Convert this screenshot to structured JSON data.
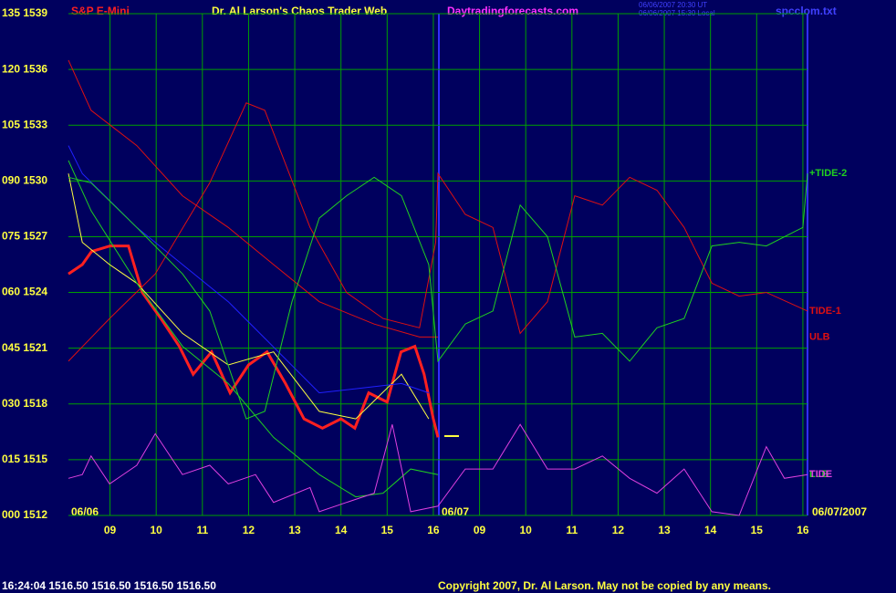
{
  "chart_data": {
    "type": "line",
    "title": "Dr. Al Larson's Chaos Trader Web",
    "subtitle": "S&P E-Mini",
    "website": "Daytradingforecasts.com",
    "file": "spcclom.txt",
    "stamp": [
      "06/06/2007 20:30 UT",
      "06/06/2007 15:30 Local"
    ],
    "day_labels": [
      "06/06",
      "06/07",
      "06/07/2007"
    ],
    "status": "16:24:04  1516.50  1516.50  1516.50  1516.50",
    "copyright": "Copyright 2007, Dr. Al Larson. May not be copied by any means.",
    "xlim": [
      0,
      16
    ],
    "xticks": [
      {
        "value": 0.9,
        "label": "09"
      },
      {
        "value": 1.9,
        "label": "10"
      },
      {
        "value": 2.9,
        "label": "11"
      },
      {
        "value": 3.9,
        "label": "12"
      },
      {
        "value": 4.9,
        "label": "13"
      },
      {
        "value": 5.9,
        "label": "14"
      },
      {
        "value": 6.9,
        "label": "15"
      },
      {
        "value": 7.9,
        "label": "16"
      },
      {
        "value": 8.9,
        "label": "09"
      },
      {
        "value": 9.9,
        "label": "10"
      },
      {
        "value": 10.9,
        "label": "11"
      },
      {
        "value": 11.9,
        "label": "12"
      },
      {
        "value": 12.9,
        "label": "13"
      },
      {
        "value": 13.9,
        "label": "14"
      },
      {
        "value": 14.9,
        "label": "15"
      },
      {
        "value": 15.9,
        "label": "16"
      }
    ],
    "ylim": [
      1512,
      1539
    ],
    "yticks": [
      {
        "value": 1539,
        "label": "135 1539"
      },
      {
        "value": 1536,
        "label": "120 1536"
      },
      {
        "value": 1533,
        "label": "105 1533"
      },
      {
        "value": 1530,
        "label": "090 1530"
      },
      {
        "value": 1527,
        "label": "075 1527"
      },
      {
        "value": 1524,
        "label": "060 1524"
      },
      {
        "value": 1521,
        "label": "045 1521"
      },
      {
        "value": 1518,
        "label": "030 1518"
      },
      {
        "value": 1515,
        "label": "015 1515"
      },
      {
        "value": 1512,
        "label": "000 1512"
      }
    ],
    "grid": true,
    "series": [
      {
        "color": "#ff2020",
        "width": 3,
        "x": [
          0,
          0.3,
          0.5,
          0.9,
          1.3,
          1.6,
          2.0,
          2.4,
          2.7,
          3.1,
          3.5,
          3.9,
          4.3,
          4.7,
          5.1,
          5.5,
          5.9,
          6.2,
          6.5,
          6.9,
          7.2,
          7.5,
          7.7,
          7.9,
          8.0
        ],
        "values": [
          1525.0,
          1525.5,
          1526.2,
          1526.5,
          1526.5,
          1524.0,
          1522.6,
          1521.1,
          1519.6,
          1520.8,
          1518.6,
          1520.1,
          1520.8,
          1519.1,
          1517.2,
          1516.7,
          1517.2,
          1516.7,
          1518.6,
          1518.1,
          1520.8,
          1521.1,
          1519.6,
          1517.2,
          1516.2
        ]
      },
      {
        "color": "#ffff40",
        "width": 1,
        "x": [
          0,
          0.3,
          0.89,
          1.48,
          2.47,
          3.46,
          4.44,
          5.43,
          6.22,
          7.21,
          7.8
        ],
        "values": [
          1530.4,
          1526.7,
          1525.5,
          1524.5,
          1521.8,
          1520.1,
          1520.8,
          1517.6,
          1517.2,
          1519.6,
          1517.2
        ]
      },
      {
        "color": "#2020ff",
        "width": 1,
        "x": [
          0,
          0.3,
          1.48,
          3.46,
          5.43,
          7.21,
          7.8
        ],
        "values": [
          1531.9,
          1530.4,
          1527.5,
          1523.5,
          1518.6,
          1519.1,
          1518.6
        ]
      },
      {
        "name": "ULB",
        "color": "#e01010",
        "width": 1,
        "x": [
          0,
          0.49,
          1.48,
          2.47,
          3.46,
          4.44,
          5.43,
          6.62,
          7.6,
          8.0
        ],
        "values": [
          1536.5,
          1533.8,
          1531.9,
          1529.2,
          1527.5,
          1525.5,
          1523.5,
          1522.3,
          1521.6,
          1521.6
        ]
      },
      {
        "name": "TIDE-1",
        "color": "#e01010",
        "width": 1,
        "x": [
          0,
          0.89,
          1.88,
          3.06,
          3.85,
          4.25,
          5.23,
          6.02,
          6.81,
          7.6,
          7.95,
          8.0,
          8.59,
          9.19,
          9.78,
          10.37,
          10.96,
          11.56,
          12.15,
          12.74,
          13.33,
          13.93,
          14.52,
          15.11,
          16.0
        ],
        "values": [
          1520.3,
          1522.6,
          1525.0,
          1529.9,
          1534.2,
          1533.8,
          1527.5,
          1524.0,
          1522.6,
          1522.1,
          1526.7,
          1530.4,
          1528.2,
          1527.5,
          1521.8,
          1523.5,
          1529.2,
          1528.7,
          1530.2,
          1529.5,
          1527.5,
          1524.5,
          1523.8,
          1524.0,
          1523.0
        ]
      },
      {
        "name": "+TIDE-2",
        "color": "#20d020",
        "width": 1,
        "x": [
          0,
          0.49,
          1.48,
          2.47,
          3.06,
          3.85,
          4.25,
          4.84,
          5.43,
          6.02,
          6.62,
          7.21,
          7.8,
          8.0,
          8.59,
          9.19,
          9.78,
          10.37,
          10.96,
          11.56,
          12.15,
          12.74,
          13.33,
          13.93,
          14.52,
          15.11,
          15.9,
          16.0
        ],
        "values": [
          1530.2,
          1529.9,
          1527.5,
          1525.0,
          1523.0,
          1517.2,
          1517.6,
          1523.5,
          1528.0,
          1529.2,
          1530.2,
          1529.2,
          1525.5,
          1520.3,
          1522.3,
          1523.0,
          1528.7,
          1527.0,
          1521.6,
          1521.8,
          1520.3,
          1522.1,
          1522.6,
          1526.5,
          1526.7,
          1526.5,
          1527.5,
          1530.4
        ]
      },
      {
        "name": "LLB",
        "color": "#20d020",
        "width": 1,
        "x": [
          0,
          0.49,
          1.48,
          2.47,
          3.46,
          4.44,
          5.43,
          6.22,
          6.81,
          7.41,
          8.0
        ],
        "values": [
          1531.1,
          1528.4,
          1524.5,
          1521.1,
          1519.1,
          1516.2,
          1514.2,
          1513.0,
          1513.2,
          1514.5,
          1514.2
        ]
      },
      {
        "name": "TIDE",
        "color": "#e040e0",
        "width": 1,
        "x": [
          0,
          0.3,
          0.49,
          0.89,
          1.48,
          1.88,
          2.47,
          3.06,
          3.46,
          4.05,
          4.44,
          5.23,
          5.43,
          6.02,
          6.62,
          7.01,
          7.41,
          8.0,
          8.59,
          9.19,
          9.78,
          10.37,
          10.96,
          11.56,
          12.15,
          12.74,
          13.33,
          13.93,
          14.52,
          15.11,
          15.5,
          16.0
        ],
        "values": [
          1514.0,
          1514.2,
          1515.2,
          1513.7,
          1514.7,
          1516.4,
          1514.2,
          1514.7,
          1513.7,
          1514.2,
          1512.7,
          1513.5,
          1512.2,
          1512.7,
          1513.2,
          1516.9,
          1512.2,
          1512.5,
          1514.5,
          1514.5,
          1516.9,
          1514.5,
          1514.5,
          1515.2,
          1514.0,
          1513.2,
          1514.5,
          1512.2,
          1512.0,
          1515.7,
          1514.0,
          1514.2
        ]
      }
    ]
  }
}
